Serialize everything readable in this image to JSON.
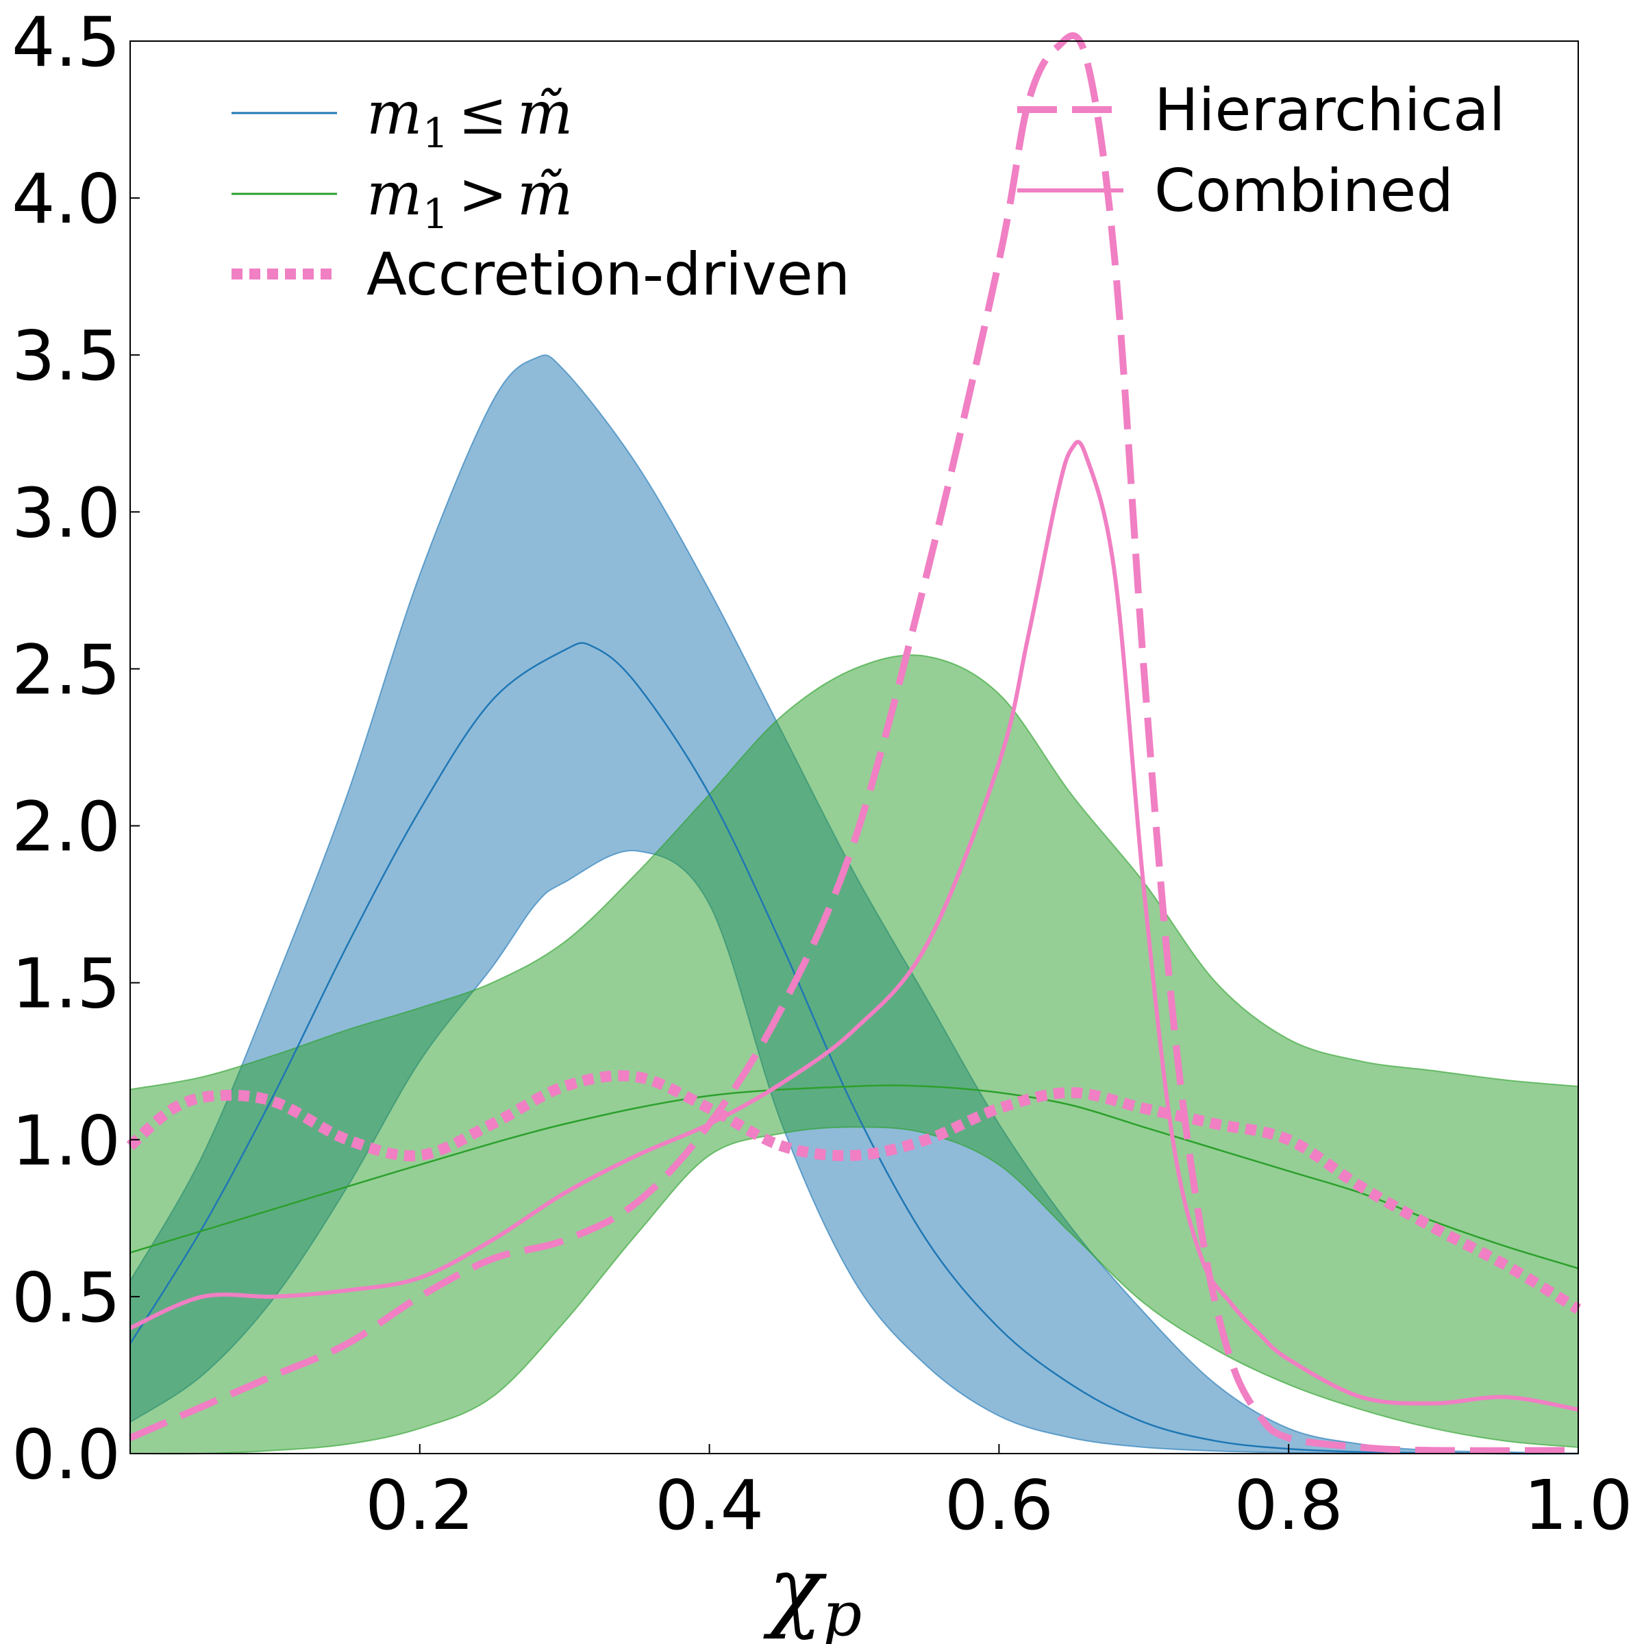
{
  "chart_data": {
    "type": "line",
    "title": "",
    "xlabel": "χ",
    "xlabel_sub": "p",
    "ylabel": "",
    "xlim": [
      0.0,
      1.0
    ],
    "ylim": [
      0.0,
      4.5
    ],
    "grid": false,
    "x_ticks": [
      0.2,
      0.4,
      0.6,
      0.8,
      1.0
    ],
    "x_tick_labels": [
      "0.2",
      "0.4",
      "0.6",
      "0.8",
      "1.0"
    ],
    "y_ticks": [
      0.0,
      0.5,
      1.0,
      1.5,
      2.0,
      2.5,
      3.0,
      3.5,
      4.0,
      4.5
    ],
    "y_tick_labels": [
      "0.0",
      "0.5",
      "1.0",
      "1.5",
      "2.0",
      "2.5",
      "3.0",
      "3.5",
      "4.0",
      "4.5"
    ],
    "legend_left": {
      "placement": "top-left",
      "entries": [
        {
          "key": "m1_le",
          "label_main": "m",
          "label_sub": "1",
          "label_rel": "≤",
          "label_var": "m̃"
        },
        {
          "key": "m1_gt",
          "label_main": "m",
          "label_sub": "1",
          "label_rel": ">",
          "label_var": "m̃"
        },
        {
          "key": "accretion",
          "label": "Accretion-driven"
        }
      ]
    },
    "legend_right": {
      "placement": "top-right",
      "entries": [
        {
          "key": "hierarchical",
          "label": "Hierarchical"
        },
        {
          "key": "combined",
          "label": "Combined"
        }
      ]
    },
    "bands": [
      {
        "name": "m1 <= m_tilde band",
        "color": "#1f77b4",
        "x": [
          0.0,
          0.05,
          0.1,
          0.15,
          0.2,
          0.25,
          0.28,
          0.3,
          0.35,
          0.4,
          0.45,
          0.5,
          0.55,
          0.6,
          0.65,
          0.7,
          0.75,
          0.8,
          0.85,
          0.9,
          0.95,
          1.0
        ],
        "upper": [
          0.55,
          0.95,
          1.5,
          2.1,
          2.8,
          3.35,
          3.49,
          3.45,
          3.15,
          2.75,
          2.3,
          1.85,
          1.45,
          1.05,
          0.72,
          0.45,
          0.22,
          0.08,
          0.03,
          0.01,
          0.005,
          0.0
        ],
        "lower": [
          0.1,
          0.25,
          0.5,
          0.85,
          1.25,
          1.55,
          1.75,
          1.82,
          1.92,
          1.75,
          1.05,
          0.55,
          0.28,
          0.12,
          0.05,
          0.02,
          0.008,
          0.003,
          0.001,
          0.0,
          0.0,
          0.0
        ]
      },
      {
        "name": "m1 > m_tilde band",
        "color": "#2ca02c",
        "x": [
          0.0,
          0.05,
          0.1,
          0.15,
          0.2,
          0.25,
          0.3,
          0.35,
          0.4,
          0.45,
          0.5,
          0.55,
          0.6,
          0.65,
          0.7,
          0.75,
          0.8,
          0.85,
          0.9,
          0.95,
          1.0
        ],
        "upper": [
          1.16,
          1.2,
          1.27,
          1.35,
          1.42,
          1.5,
          1.63,
          1.85,
          2.1,
          2.35,
          2.5,
          2.54,
          2.42,
          2.1,
          1.82,
          1.5,
          1.32,
          1.25,
          1.22,
          1.19,
          1.17
        ],
        "lower": [
          0.0,
          0.0,
          0.01,
          0.03,
          0.08,
          0.18,
          0.42,
          0.7,
          0.95,
          1.02,
          1.04,
          1.02,
          0.92,
          0.7,
          0.48,
          0.33,
          0.22,
          0.14,
          0.08,
          0.04,
          0.02
        ]
      }
    ],
    "series": [
      {
        "name": "m1 <= m_tilde",
        "style": "thin",
        "color": "#1f77b4",
        "x": [
          0.0,
          0.05,
          0.1,
          0.15,
          0.2,
          0.25,
          0.3,
          0.32,
          0.35,
          0.4,
          0.45,
          0.5,
          0.55,
          0.6,
          0.65,
          0.7,
          0.75,
          0.8,
          0.85,
          0.9,
          0.95,
          1.0
        ],
        "y": [
          0.35,
          0.72,
          1.15,
          1.62,
          2.05,
          2.4,
          2.56,
          2.57,
          2.45,
          2.1,
          1.62,
          1.1,
          0.68,
          0.4,
          0.22,
          0.1,
          0.04,
          0.015,
          0.005,
          0.002,
          0.0,
          0.0
        ]
      },
      {
        "name": "m1 > m_tilde",
        "style": "thin",
        "color": "#2ca02c",
        "x": [
          0.0,
          0.1,
          0.2,
          0.3,
          0.4,
          0.5,
          0.55,
          0.6,
          0.65,
          0.7,
          0.75,
          0.8,
          0.85,
          0.9,
          0.95,
          1.0
        ],
        "y": [
          0.64,
          0.78,
          0.92,
          1.05,
          1.14,
          1.17,
          1.17,
          1.15,
          1.11,
          1.04,
          0.97,
          0.9,
          0.83,
          0.74,
          0.66,
          0.59
        ]
      },
      {
        "name": "Accretion-driven",
        "style": "dotted",
        "color": "#f07fc3",
        "x": [
          0.0,
          0.03,
          0.06,
          0.1,
          0.15,
          0.2,
          0.25,
          0.3,
          0.35,
          0.4,
          0.45,
          0.5,
          0.55,
          0.6,
          0.65,
          0.7,
          0.75,
          0.8,
          0.85,
          0.9,
          0.95,
          1.0
        ],
        "y": [
          0.98,
          1.1,
          1.14,
          1.12,
          1.0,
          0.95,
          1.05,
          1.17,
          1.2,
          1.1,
          0.98,
          0.95,
          1.0,
          1.1,
          1.15,
          1.1,
          1.05,
          1.0,
          0.85,
          0.72,
          0.6,
          0.46
        ]
      },
      {
        "name": "Hierarchical",
        "style": "dashed",
        "color": "#f07fc3",
        "x": [
          0.0,
          0.05,
          0.1,
          0.15,
          0.2,
          0.25,
          0.3,
          0.35,
          0.4,
          0.45,
          0.5,
          0.55,
          0.6,
          0.62,
          0.64,
          0.66,
          0.68,
          0.7,
          0.72,
          0.74,
          0.76,
          0.78,
          0.8,
          0.85,
          0.9,
          1.0
        ],
        "y": [
          0.05,
          0.15,
          0.25,
          0.35,
          0.5,
          0.62,
          0.68,
          0.8,
          1.05,
          1.42,
          1.95,
          2.8,
          3.8,
          4.3,
          4.48,
          4.45,
          3.8,
          2.5,
          1.4,
          0.7,
          0.3,
          0.12,
          0.05,
          0.02,
          0.01,
          0.01
        ]
      },
      {
        "name": "Combined",
        "style": "solid",
        "color": "#f07fc3",
        "x": [
          0.0,
          0.05,
          0.1,
          0.15,
          0.2,
          0.25,
          0.3,
          0.35,
          0.4,
          0.45,
          0.5,
          0.55,
          0.6,
          0.62,
          0.64,
          0.65,
          0.66,
          0.68,
          0.7,
          0.72,
          0.74,
          0.76,
          0.78,
          0.8,
          0.85,
          0.9,
          0.95,
          1.0
        ],
        "y": [
          0.4,
          0.5,
          0.5,
          0.52,
          0.56,
          0.68,
          0.83,
          0.95,
          1.05,
          1.18,
          1.35,
          1.62,
          2.2,
          2.6,
          3.05,
          3.2,
          3.18,
          2.8,
          1.8,
          1.0,
          0.62,
          0.48,
          0.38,
          0.3,
          0.18,
          0.16,
          0.18,
          0.14
        ]
      }
    ]
  }
}
